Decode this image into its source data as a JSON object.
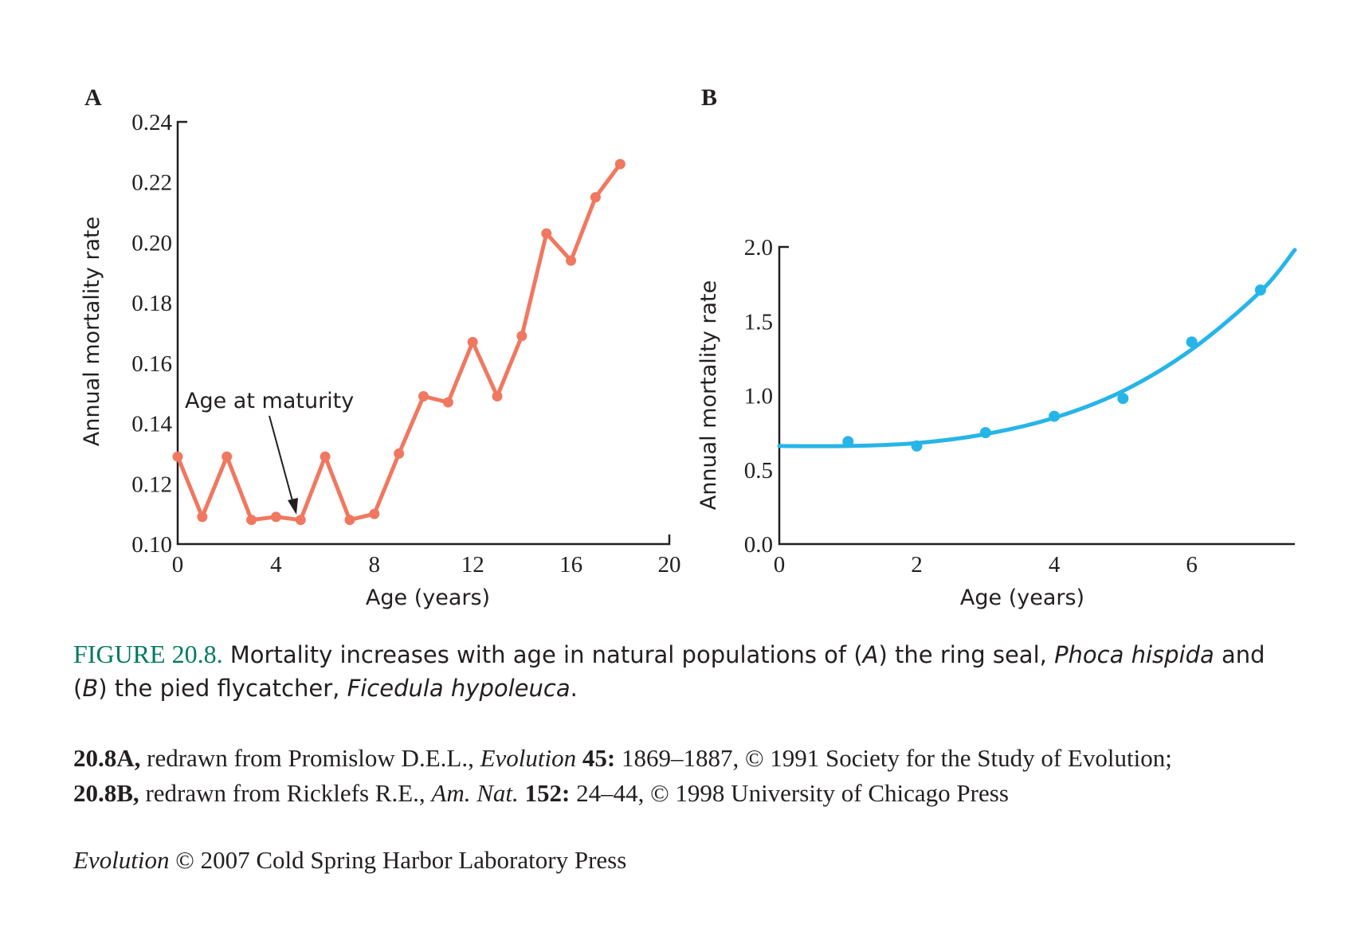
{
  "chart_data": [
    {
      "panel": "A",
      "type": "line",
      "xlabel": "Age (years)",
      "ylabel": "Annual mortality rate",
      "xlim": [
        0,
        20
      ],
      "ylim": [
        0.1,
        0.24
      ],
      "xticks": [
        "0",
        "4",
        "8",
        "12",
        "16",
        "20"
      ],
      "yticks": [
        "0.10",
        "0.12",
        "0.14",
        "0.16",
        "0.18",
        "0.20",
        "0.22",
        "0.24"
      ],
      "color": "#f07860",
      "x": [
        0,
        1,
        2,
        3,
        4,
        5,
        6,
        7,
        8,
        9,
        10,
        11,
        12,
        13,
        14,
        15,
        16,
        17,
        18
      ],
      "y": [
        0.129,
        0.109,
        0.129,
        0.108,
        0.109,
        0.108,
        0.129,
        0.108,
        0.11,
        0.13,
        0.149,
        0.147,
        0.167,
        0.149,
        0.169,
        0.203,
        0.194,
        0.215,
        0.226
      ],
      "annotation": {
        "text": "Age at maturity",
        "x": 5,
        "y": 0.108
      }
    },
    {
      "panel": "B",
      "type": "scatter",
      "xlabel": "Age (years)",
      "ylabel": "Annual mortality rate",
      "xlim": [
        0,
        7.5
      ],
      "ylim": [
        0.0,
        2.0
      ],
      "xticks": [
        "0",
        "2",
        "4",
        "6"
      ],
      "yticks": [
        "0.0",
        "0.5",
        "1.0",
        "1.5",
        "2.0"
      ],
      "color": "#27b5e8",
      "x": [
        1,
        2,
        3,
        4,
        5,
        6,
        7
      ],
      "y": [
        0.69,
        0.66,
        0.75,
        0.86,
        0.98,
        1.36,
        1.71
      ],
      "fit": {
        "type": "curve",
        "x": [
          0,
          1,
          2,
          3,
          4,
          5,
          6,
          7,
          7.5
        ],
        "y": [
          0.66,
          0.66,
          0.68,
          0.74,
          0.85,
          1.03,
          1.31,
          1.7,
          1.98
        ]
      }
    }
  ],
  "caption": {
    "label": "FIGURE 20.8.",
    "text_1": "Mortality increases with age in natural populations of (",
    "A": "A",
    "text_2": ") the ring seal, ",
    "species_a": "Phoca hispida",
    "text_3": " and (",
    "B": "B",
    "text_4": ") the pied flycatcher, ",
    "species_b": "Ficedula hypoleuca",
    "text_5": "."
  },
  "credits": {
    "line1": {
      "ref": "20.8A,",
      "text_1": " redrawn from Promislow D.E.L., ",
      "journal": "Evolution",
      "vol": " 45:",
      "text_2": " 1869–1887, © 1991 Society for the Study of Evolution;"
    },
    "line2": {
      "ref": "20.8B,",
      "text_1": " redrawn from Ricklefs R.E., ",
      "journal": "Am. Nat.",
      "vol": " 152:",
      "text_2": " 24–44, © 1998 University of Chicago Press"
    }
  },
  "copyright": {
    "book": "Evolution",
    "text": " © 2007 Cold Spring Harbor Laboratory Press"
  }
}
